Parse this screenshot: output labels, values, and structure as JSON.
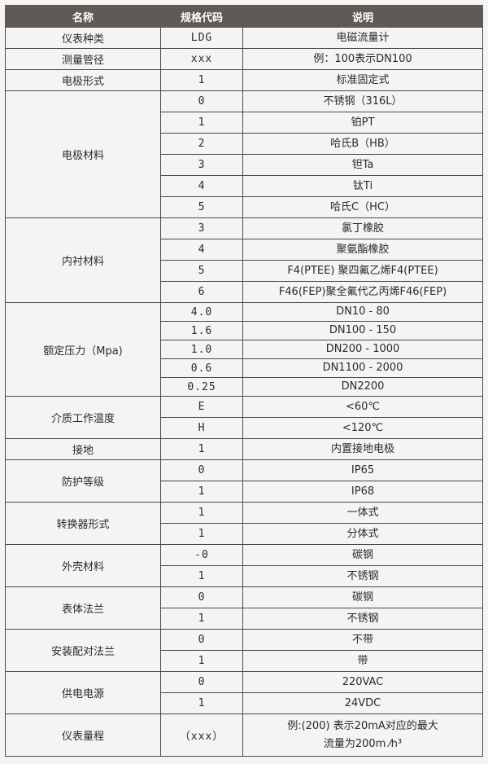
{
  "header": {
    "name": "名称",
    "code": "规格代码",
    "desc": "说明"
  },
  "groups": [
    {
      "name": "仪表种类",
      "rows": [
        {
          "code": "LDG",
          "desc": "电磁流量计"
        }
      ]
    },
    {
      "name": "测量管径",
      "rows": [
        {
          "code": "xxx",
          "desc": "例：100表示DN100"
        }
      ]
    },
    {
      "name": "电极形式",
      "rows": [
        {
          "code": "1",
          "desc": "标准固定式"
        }
      ]
    },
    {
      "name": "电极材料",
      "rows": [
        {
          "code": "0",
          "desc": "不锈钢（316L）"
        },
        {
          "code": "1",
          "desc": "铂PT"
        },
        {
          "code": "2",
          "desc": "哈氏B（HB）"
        },
        {
          "code": "3",
          "desc": "钽Ta"
        },
        {
          "code": "4",
          "desc": "钛Ti"
        },
        {
          "code": "5",
          "desc": "哈氏C（HC）"
        }
      ]
    },
    {
      "name": "内衬材料",
      "rows": [
        {
          "code": "3",
          "desc": "氯丁橡胶"
        },
        {
          "code": "4",
          "desc": "聚氨酯橡胶"
        },
        {
          "code": "5",
          "desc": "F4(PTEE) 聚四氟乙烯F4(PTEE)"
        },
        {
          "code": "6",
          "desc": "F46(FEP)聚全氟代乙丙烯F46(FEP)"
        }
      ]
    },
    {
      "name": "额定压力（Mpa)",
      "short": true,
      "rows": [
        {
          "code": "4.0",
          "desc": "DN10 - 80"
        },
        {
          "code": "1.6",
          "desc": "DN100 - 150"
        },
        {
          "code": "1.0",
          "desc": "DN200 - 1000"
        },
        {
          "code": "0.6",
          "desc": "DN1100 - 2000"
        },
        {
          "code": "0.25",
          "desc": "DN2200"
        }
      ]
    },
    {
      "name": "介质工作温度",
      "rows": [
        {
          "code": "E",
          "desc": "<60℃"
        },
        {
          "code": "H",
          "desc": "<120℃"
        }
      ]
    },
    {
      "name": "接地",
      "rows": [
        {
          "code": "1",
          "desc": "内置接地电极"
        }
      ]
    },
    {
      "name": "防护等级",
      "rows": [
        {
          "code": "0",
          "desc": "IP65"
        },
        {
          "code": "1",
          "desc": "IP68"
        }
      ]
    },
    {
      "name": "转换器形式",
      "rows": [
        {
          "code": "1",
          "desc": "一体式"
        },
        {
          "code": "1",
          "desc": "分体式"
        }
      ]
    },
    {
      "name": "外壳材料",
      "rows": [
        {
          "code": "-0",
          "desc": "碳钢"
        },
        {
          "code": "1",
          "desc": "不锈钢"
        }
      ]
    },
    {
      "name": "表体法兰",
      "rows": [
        {
          "code": "0",
          "desc": "碳钢"
        },
        {
          "code": "1",
          "desc": "不锈钢"
        }
      ]
    },
    {
      "name": "安装配对法兰",
      "rows": [
        {
          "code": "0",
          "desc": "不带"
        },
        {
          "code": "1",
          "desc": "带"
        }
      ]
    },
    {
      "name": "供电电源",
      "rows": [
        {
          "code": "0",
          "desc": "220VAC"
        },
        {
          "code": "1",
          "desc": "24VDC"
        }
      ]
    },
    {
      "name": "仪表量程",
      "tall": true,
      "rows": [
        {
          "code": "（xxx）",
          "desc": "例:(200) 表示20mA对应的最大",
          "desc2": "流量为200m ⁄h³"
        }
      ]
    }
  ]
}
